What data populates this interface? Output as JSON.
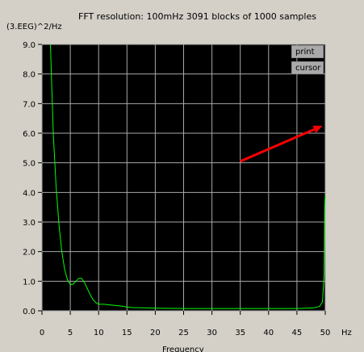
{
  "header": {
    "title": "FFT resolution: 100mHz   3091 blocks of 1000 samples"
  },
  "buttons": {
    "print": "print",
    "cursor": "cursor"
  },
  "chart_data": {
    "type": "line",
    "title": "FFT resolution: 100mHz   3091 blocks of 1000 samples",
    "ylabel": "(3.EEG)^2/Hz",
    "xlabel": "Frequency",
    "x_unit": "Hz",
    "xlim": [
      0,
      50
    ],
    "ylim": [
      0,
      9
    ],
    "x_ticks": [
      0,
      5,
      10,
      15,
      20,
      25,
      30,
      35,
      40,
      45,
      50
    ],
    "y_ticks": [
      "0.0",
      "1.0",
      "2.0",
      "3.0",
      "4.0",
      "5.0",
      "6.0",
      "7.0",
      "8.0",
      "9.0"
    ],
    "grid": true,
    "background": "#000000",
    "grid_color": "#a8a8a8",
    "line_color": "#00ff00",
    "arrow_color": "#ff0000",
    "series": [
      {
        "x": [
          1.5,
          1.8,
          2.0,
          2.5,
          3.0,
          3.5,
          4.0,
          4.5,
          5.0,
          5.5,
          6.0,
          6.5,
          7.0,
          7.5,
          8.0,
          8.5,
          9.0,
          9.5,
          10.0,
          11.0,
          12.0,
          13.0,
          14.0,
          15.0,
          16.0,
          18.0,
          20.0,
          25.0,
          30.0,
          35.0,
          40.0,
          45.0,
          48.0,
          49.0,
          49.5,
          49.8,
          49.9,
          50.0
        ],
        "y": [
          9.0,
          7.2,
          6.0,
          4.2,
          2.9,
          2.0,
          1.4,
          1.05,
          0.88,
          0.9,
          1.0,
          1.1,
          1.1,
          0.95,
          0.75,
          0.55,
          0.38,
          0.28,
          0.22,
          0.22,
          0.2,
          0.18,
          0.16,
          0.13,
          0.11,
          0.1,
          0.09,
          0.08,
          0.08,
          0.08,
          0.08,
          0.08,
          0.1,
          0.15,
          0.3,
          1.2,
          3.5,
          3.9
        ]
      }
    ],
    "annotation": {
      "type": "arrow",
      "from": [
        35,
        5.05
      ],
      "to": [
        49.5,
        6.25
      ]
    }
  }
}
